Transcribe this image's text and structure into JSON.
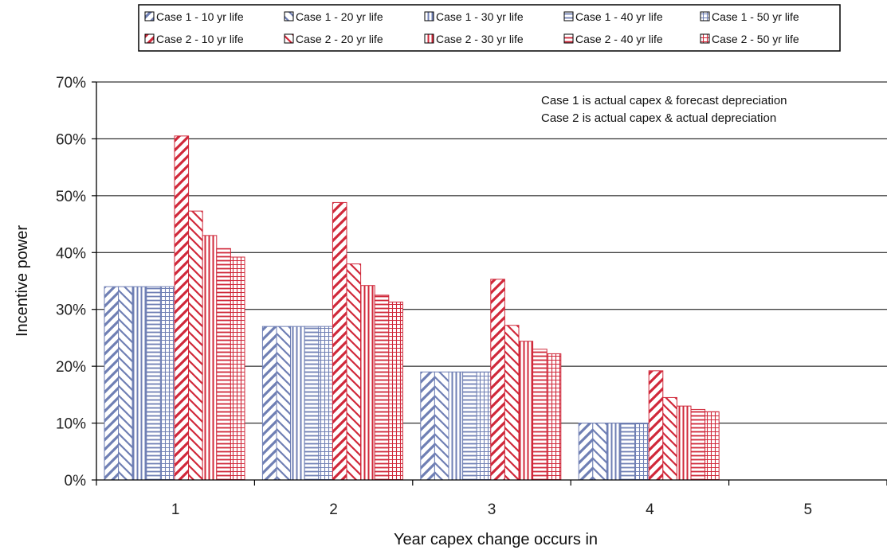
{
  "chart_data": {
    "type": "bar",
    "title": "",
    "xlabel": "Year capex change occurs in",
    "ylabel": "Incentive power",
    "categories": [
      "1",
      "2",
      "3",
      "4",
      "5"
    ],
    "ylim": [
      0,
      0.7
    ],
    "yticks": [
      "0%",
      "10%",
      "20%",
      "30%",
      "40%",
      "50%",
      "60%",
      "70%"
    ],
    "grid": "horizontal",
    "legend_position": "top",
    "notes": [
      "Case 1 is actual capex & forecast depreciation",
      "Case 2 is actual capex & actual depreciation"
    ],
    "series": [
      {
        "name": "Case 1 - 10 yr life",
        "values": [
          0.34,
          0.27,
          0.19,
          0.1,
          0
        ],
        "color": "#6f7fb4",
        "pattern": "wdiag"
      },
      {
        "name": "Case 1 - 20 yr life",
        "values": [
          0.34,
          0.27,
          0.19,
          0.1,
          0
        ],
        "color": "#6f7fb4",
        "pattern": "zdiag"
      },
      {
        "name": "Case 1 - 30 yr life",
        "values": [
          0.34,
          0.27,
          0.19,
          0.1,
          0
        ],
        "color": "#6f7fb4",
        "pattern": "vert"
      },
      {
        "name": "Case 1 - 40 yr life",
        "values": [
          0.34,
          0.27,
          0.19,
          0.1,
          0
        ],
        "color": "#6f7fb4",
        "pattern": "horiz"
      },
      {
        "name": "Case 1 - 50 yr life",
        "values": [
          0.34,
          0.27,
          0.19,
          0.1,
          0
        ],
        "color": "#6f7fb4",
        "pattern": "grid"
      },
      {
        "name": "Case 2 - 10 yr life",
        "values": [
          0.605,
          0.488,
          0.353,
          0.192,
          0
        ],
        "color": "#d0283a",
        "pattern": "wdiag"
      },
      {
        "name": "Case 2 - 20 yr life",
        "values": [
          0.473,
          0.38,
          0.272,
          0.145,
          0
        ],
        "color": "#d0283a",
        "pattern": "zdiag"
      },
      {
        "name": "Case 2 - 30 yr life",
        "values": [
          0.43,
          0.342,
          0.244,
          0.13,
          0
        ],
        "color": "#d0283a",
        "pattern": "vert"
      },
      {
        "name": "Case 2 - 40 yr life",
        "values": [
          0.407,
          0.325,
          0.23,
          0.124,
          0
        ],
        "color": "#d0283a",
        "pattern": "horiz"
      },
      {
        "name": "Case 2 - 50 yr life",
        "values": [
          0.392,
          0.313,
          0.222,
          0.12,
          0
        ],
        "color": "#d0283a",
        "pattern": "grid"
      }
    ]
  }
}
